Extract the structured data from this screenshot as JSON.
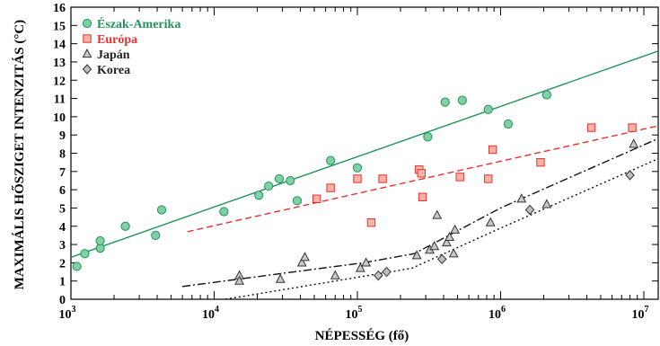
{
  "chart_data": {
    "type": "scatter",
    "x_scale": "log",
    "xlim": [
      1000,
      12600000
    ],
    "ylim": [
      0,
      16
    ],
    "xlabel": "NÉPESSÉG (fő)",
    "ylabel": "MAXIMÁLIS HŐSZIGET INTENZITÁS (°C)",
    "x_ticks": [
      {
        "base": "10",
        "exp": "3",
        "value": 1000
      },
      {
        "base": "10",
        "exp": "4",
        "value": 10000
      },
      {
        "base": "10",
        "exp": "5",
        "value": 100000
      },
      {
        "base": "10",
        "exp": "6",
        "value": 1000000
      },
      {
        "base": "10",
        "exp": "7",
        "value": 10000000
      }
    ],
    "y_ticks": [
      "0",
      "1",
      "2",
      "3",
      "4",
      "5",
      "6",
      "7",
      "8",
      "9",
      "10",
      "11",
      "12",
      "13",
      "14",
      "15",
      "16"
    ],
    "grid": false,
    "legend_position": "top-left",
    "series": [
      {
        "name": "Észak-Amerika",
        "marker": "circle",
        "color": "#22935a",
        "fill": "#7fd1a5",
        "points": [
          [
            1100,
            1.8
          ],
          [
            1250,
            2.5
          ],
          [
            1600,
            2.8
          ],
          [
            1600,
            3.2
          ],
          [
            2400,
            4.0
          ],
          [
            3900,
            3.5
          ],
          [
            4300,
            4.9
          ],
          [
            11700,
            4.8
          ],
          [
            20500,
            5.7
          ],
          [
            24000,
            6.2
          ],
          [
            28500,
            6.6
          ],
          [
            34000,
            6.5
          ],
          [
            38000,
            5.4
          ],
          [
            65000,
            7.6
          ],
          [
            100000,
            7.2
          ],
          [
            310000,
            8.9
          ],
          [
            410000,
            10.8
          ],
          [
            540000,
            10.9
          ],
          [
            820000,
            10.4
          ],
          [
            1130000,
            9.6
          ],
          [
            2100000,
            11.2
          ]
        ]
      },
      {
        "name": "Európa",
        "marker": "square",
        "color": "#e8302e",
        "fill": "#f7b3a3",
        "points": [
          [
            52000,
            5.5
          ],
          [
            65000,
            6.1
          ],
          [
            100000,
            6.6
          ],
          [
            125000,
            4.2
          ],
          [
            150000,
            6.6
          ],
          [
            270000,
            7.1
          ],
          [
            280000,
            6.9
          ],
          [
            285000,
            5.6
          ],
          [
            520000,
            6.7
          ],
          [
            820000,
            6.6
          ],
          [
            880000,
            8.2
          ],
          [
            1900000,
            7.5
          ],
          [
            4300000,
            9.4
          ],
          [
            8300000,
            9.4
          ]
        ]
      },
      {
        "name": "Japán",
        "marker": "triangle",
        "color": "#333333",
        "fill": "#c8c8c8",
        "points": [
          [
            15000,
            1.3
          ],
          [
            15000,
            1.0
          ],
          [
            29000,
            1.1
          ],
          [
            41000,
            2.0
          ],
          [
            43000,
            2.3
          ],
          [
            70000,
            1.3
          ],
          [
            105000,
            1.7
          ],
          [
            115000,
            2.0
          ],
          [
            260000,
            2.4
          ],
          [
            320000,
            2.7
          ],
          [
            345000,
            2.9
          ],
          [
            360000,
            4.6
          ],
          [
            420000,
            3.1
          ],
          [
            440000,
            3.4
          ],
          [
            480000,
            3.8
          ],
          [
            470000,
            2.5
          ],
          [
            850000,
            4.2
          ],
          [
            1400000,
            5.5
          ],
          [
            2100000,
            5.2
          ],
          [
            8500000,
            8.5
          ]
        ]
      },
      {
        "name": "Korea",
        "marker": "diamond",
        "color": "#333333",
        "fill": "#bdbdbd",
        "points": [
          [
            140000,
            1.3
          ],
          [
            160000,
            1.5
          ],
          [
            390000,
            2.2
          ],
          [
            1600000,
            4.9
          ],
          [
            8000000,
            6.8
          ]
        ]
      }
    ],
    "fits": [
      {
        "series": "Észak-Amerika",
        "style": "solid",
        "color": "#22935a",
        "points": [
          [
            1000,
            2.3
          ],
          [
            12600000,
            13.6
          ]
        ]
      },
      {
        "series": "Európa",
        "style": "dashed",
        "color": "#e8302e",
        "points": [
          [
            6500,
            3.7
          ],
          [
            12600000,
            9.5
          ]
        ]
      },
      {
        "series": "Japán",
        "style": "dashdot",
        "color": "#111111",
        "points": [
          [
            6000,
            0.7
          ],
          [
            110000,
            2.0
          ],
          [
            250000,
            2.5
          ],
          [
            1000000,
            5.0
          ],
          [
            12600000,
            8.8
          ]
        ]
      },
      {
        "series": "Korea",
        "style": "dotted",
        "color": "#111111",
        "points": [
          [
            12000,
            0.0
          ],
          [
            240000,
            1.7
          ],
          [
            1000000,
            3.9
          ],
          [
            12600000,
            7.7
          ]
        ]
      }
    ]
  }
}
